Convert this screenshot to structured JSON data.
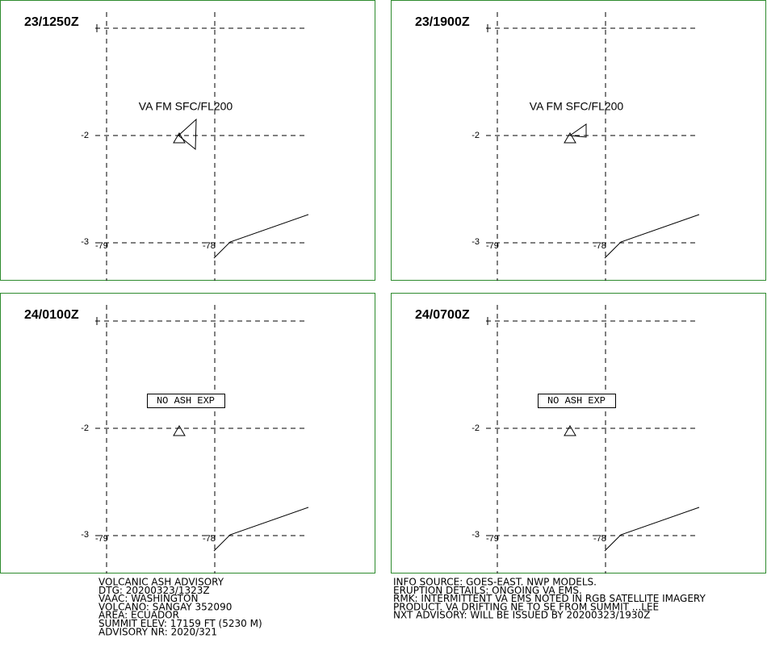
{
  "grid": {
    "lat_labels": [
      "-2",
      "-3"
    ],
    "lon_labels": [
      "-79",
      "-78"
    ]
  },
  "panels": [
    {
      "time": "23/1250Z",
      "label": "VA FM SFC/FL200"
    },
    {
      "time": "23/1900Z",
      "label": "VA FM SFC/FL200"
    },
    {
      "time": "24/0100Z",
      "label": "NO ASH EXP"
    },
    {
      "time": "24/0700Z",
      "label": "NO ASH EXP"
    }
  ],
  "advisory_left": [
    "VOLCANIC ASH ADVISORY",
    "DTG: 20200323/1323Z",
    "VAAC: WASHINGTON",
    "VOLCANO: SANGAY 352090",
    "AREA: ECUADOR",
    "SUMMIT ELEV: 17159 FT (5230 M)",
    "ADVISORY NR: 2020/321"
  ],
  "advisory_right": [
    "INFO SOURCE: GOES-EAST. NWP MODELS.",
    "ERUPTION DETAILS: ONGOING VA EMS.",
    "RMK: INTERMITTENT VA EMS NOTED IN RGB SATELLITE IMAGERY",
    "PRODUCT. VA DRIFTING NE TO SE FROM SUMMIT ...LEE",
    "NXT ADVISORY: WILL BE ISSUED BY 20200323/1930Z"
  ]
}
